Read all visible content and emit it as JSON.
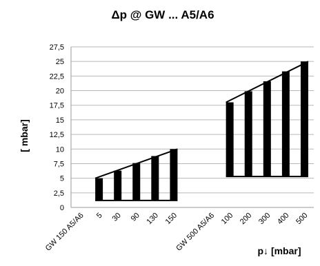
{
  "chart_data": {
    "type": "bar",
    "title": "Δp @ GW ... A5/A6",
    "xlabel": "p↓ [mbar]",
    "ylabel": "[ mbar]",
    "ylim": [
      0,
      27.5
    ],
    "yticks": [
      "0",
      "2,5",
      "5",
      "7,5",
      "10",
      "12,5",
      "15",
      "17,5",
      "20",
      "22,5",
      "25",
      "27,5"
    ],
    "grid": true,
    "legend": "none",
    "categories": [
      "GW 150 A5/A6",
      "5",
      "30",
      "90",
      "130",
      "150",
      "",
      "GW 500 A5/A6",
      "100",
      "200",
      "300",
      "400",
      "500"
    ],
    "series": [
      {
        "values": [
          null,
          5,
          6.3,
          7.6,
          8.8,
          10,
          null,
          null,
          18,
          19.9,
          21.6,
          23.3,
          25
        ],
        "lows": [
          null,
          1.2,
          1.2,
          1.2,
          1.2,
          1.2,
          null,
          null,
          5.3,
          5.3,
          5.3,
          5.3,
          5.3
        ]
      }
    ],
    "groups": [
      {
        "name": "GW 150 A5/A6",
        "start": 1,
        "end": 5,
        "base": 1.2
      },
      {
        "name": "GW 500 A5/A6",
        "start": 8,
        "end": 12,
        "base": 5.3
      }
    ],
    "bar_color": "#000000"
  }
}
